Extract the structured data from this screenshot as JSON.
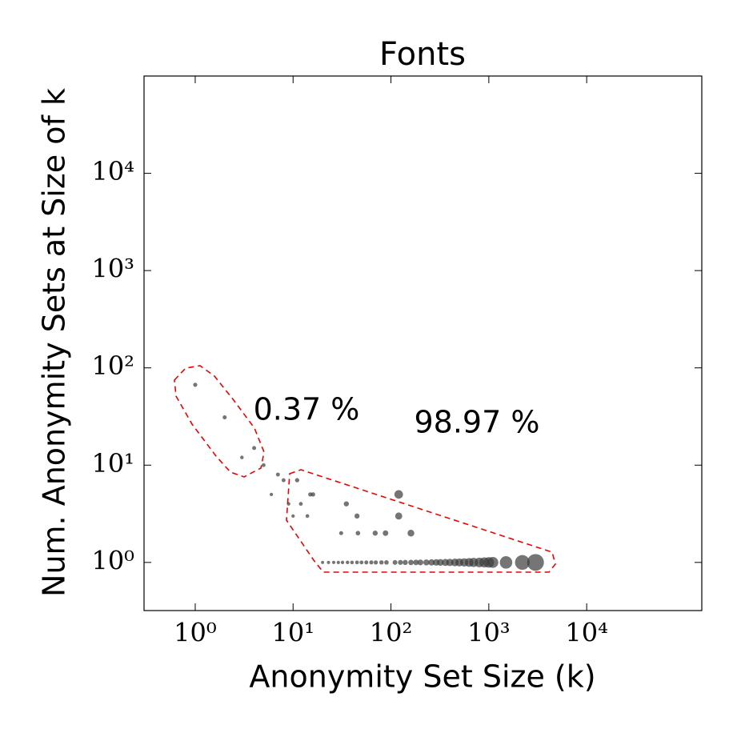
{
  "chart_data": {
    "type": "scatter",
    "title": "Fonts",
    "xlabel": "Anonymity Set Size (k)",
    "ylabel": "Num. Anonymity Sets at Size of k",
    "annotations": [
      "0.37 %",
      "98.97 %"
    ],
    "log_x": true,
    "log_y": true,
    "color": "#3a3a3a",
    "xlim": [
      0.3,
      150000
    ],
    "ylim": [
      0.32,
      100000
    ],
    "xticks": [
      {
        "value": 1,
        "label": "10⁰"
      },
      {
        "value": 10,
        "label": "10¹"
      },
      {
        "value": 100,
        "label": "10²"
      },
      {
        "value": 1000,
        "label": "10³"
      },
      {
        "value": 10000,
        "label": "10⁴"
      }
    ],
    "yticks": [
      {
        "value": 1,
        "label": "10⁰"
      },
      {
        "value": 10,
        "label": "10¹"
      },
      {
        "value": 100,
        "label": "10²"
      },
      {
        "value": 1000,
        "label": "10³"
      },
      {
        "value": 10000,
        "label": "10⁴"
      }
    ],
    "x": [
      1,
      2,
      3,
      4,
      5,
      6,
      7,
      8,
      9,
      10,
      11,
      12,
      14,
      15,
      16,
      31,
      35,
      45,
      46,
      69,
      88,
      120,
      160,
      120,
      20,
      23,
      26,
      29,
      32,
      36,
      40,
      45,
      50,
      56,
      63,
      70,
      80,
      90,
      110,
      125,
      140,
      160,
      180,
      200,
      230,
      260,
      290,
      320,
      360,
      400,
      450,
      500,
      560,
      630,
      700,
      800,
      900,
      1000,
      1100,
      1500,
      2200,
      3000
    ],
    "values": [
      67,
      31,
      12,
      15,
      10,
      5,
      8,
      7,
      4,
      3,
      7,
      4,
      3,
      5,
      5,
      2,
      4,
      3,
      2,
      2,
      2,
      3,
      2,
      5,
      1,
      1,
      1,
      1,
      1,
      1,
      1,
      1,
      1,
      1,
      1,
      1,
      1,
      1,
      1,
      1,
      1,
      1,
      1,
      1,
      1,
      1,
      1,
      1,
      1,
      1,
      1,
      1,
      1,
      1,
      1,
      1,
      1,
      1,
      1,
      1,
      1,
      1
    ],
    "sizes": [
      67,
      62,
      36,
      60,
      50,
      30,
      56,
      56,
      36,
      30,
      77,
      48,
      42,
      75,
      80,
      62,
      140,
      135,
      92,
      138,
      176,
      360,
      320,
      600,
      20,
      23,
      26,
      29,
      32,
      36,
      40,
      45,
      50,
      56,
      63,
      70,
      80,
      90,
      110,
      125,
      140,
      160,
      180,
      200,
      230,
      260,
      290,
      320,
      360,
      400,
      450,
      500,
      560,
      630,
      700,
      800,
      900,
      1000,
      1100,
      1500,
      2200,
      3000
    ]
  }
}
